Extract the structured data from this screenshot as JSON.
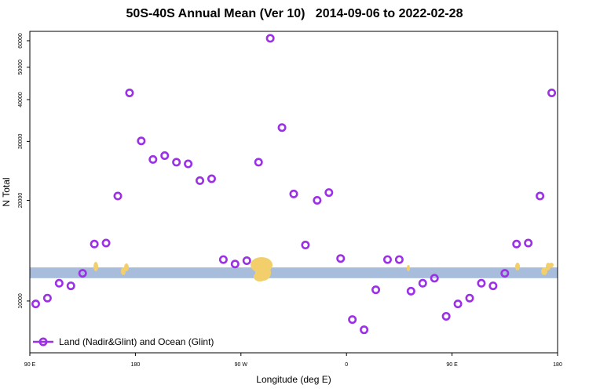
{
  "chart_data": {
    "type": "scatter",
    "title": "50S-40S Annual Mean (Ver 10)   2014-09-06 to 2022-02-28",
    "xlabel": "Longitude (deg E)",
    "ylabel": "N Total",
    "x_ticks": [
      {
        "value": 90,
        "label": "90 E"
      },
      {
        "value": 180,
        "label": "180"
      },
      {
        "value": 270,
        "label": "90 W"
      },
      {
        "value": 360,
        "label": "0"
      },
      {
        "value": 450,
        "label": "90 E"
      },
      {
        "value": 540,
        "label": "180"
      }
    ],
    "xlim": [
      90,
      540
    ],
    "y_scale": "log",
    "y_ticks": [
      10000,
      20000,
      30000,
      40000,
      50000,
      60000
    ],
    "ylim": [
      7000,
      64000
    ],
    "grid": false,
    "legend": {
      "position": "bottom-left",
      "entries": [
        "Land (Nadir&Glint) and Ocean (Glint)"
      ]
    },
    "series": [
      {
        "name": "Land (Nadir&Glint) and Ocean (Glint)",
        "color": "#9b30e6",
        "x": [
          95,
          105,
          115,
          125,
          135,
          145,
          155,
          165,
          175,
          185,
          195,
          205,
          215,
          225,
          235,
          245,
          255,
          265,
          275,
          285,
          295,
          305,
          315,
          325,
          335,
          345,
          355,
          365,
          375,
          385,
          395,
          405,
          415,
          425,
          435,
          445,
          455,
          465,
          475,
          485,
          495,
          505,
          515,
          525,
          535
        ],
        "y": [
          9800,
          10200,
          11300,
          11100,
          12100,
          14800,
          14900,
          20600,
          41900,
          30100,
          26500,
          27200,
          26000,
          25700,
          22900,
          23200,
          13300,
          12900,
          13200,
          26000,
          61000,
          33000,
          20900,
          14700,
          20000,
          21100,
          13400,
          8800,
          8200,
          10800,
          13300,
          13300,
          10700,
          11300,
          11700,
          9000,
          9800,
          10200,
          11300,
          11100,
          12100,
          14800,
          14900,
          20600,
          41900
        ]
      }
    ],
    "band": {
      "color": "#a8bddc",
      "y_range": [
        11700,
        12600
      ]
    },
    "land_color": "#f2cf6a"
  }
}
